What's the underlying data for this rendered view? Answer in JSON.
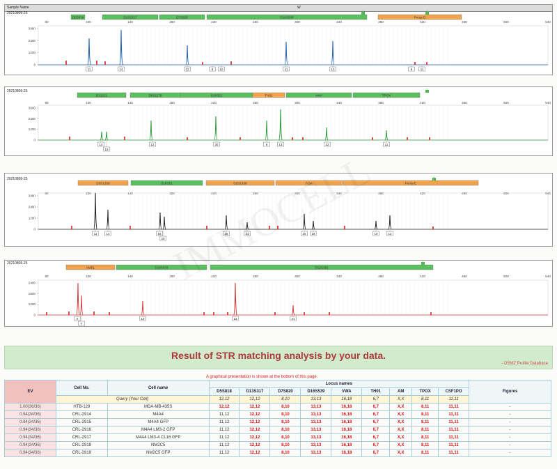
{
  "header": {
    "sample_label": "Sample Name",
    "well_label": "W"
  },
  "panels": [
    {
      "id": "blue",
      "date": "20210806-25",
      "dye_color": "#1f5fb0",
      "size_scale": [
        "80",
        "100",
        "140",
        "180",
        "220",
        "260",
        "300",
        "340",
        "380",
        "420",
        "460",
        "500",
        "540"
      ],
      "y_ticks": [
        "3400",
        "2400",
        "1200",
        "0"
      ],
      "bins": [
        {
          "label": "D5S818"
        },
        {
          "label": "D13S317"
        },
        {
          "label": "D7S820"
        },
        {
          "label": "D16S539"
        },
        {
          "label": "Penta D"
        }
      ],
      "markers": [
        "1",
        "2"
      ],
      "alleles": [
        "11",
        "14",
        "12",
        "8",
        "10",
        "11",
        "13",
        "9",
        "11"
      ]
    },
    {
      "id": "green",
      "date": "20210806-25",
      "dye_color": "#2e9a3a",
      "size_scale": [
        "80",
        "100",
        "140",
        "180",
        "220",
        "260",
        "300",
        "340",
        "380",
        "420",
        "460",
        "500",
        "540"
      ],
      "y_ticks": [
        "3600",
        "2400",
        "1200",
        "0"
      ],
      "bins": [
        {
          "label": "D21S11"
        },
        {
          "label": "D8S1179"
        },
        {
          "label": "D18S51"
        },
        {
          "label": "TH01"
        },
        {
          "label": "vWA"
        },
        {
          "label": "TPOX"
        }
      ],
      "markers": [
        "1"
      ],
      "alleles": [
        "14",
        "15",
        "12",
        "30",
        "9",
        "13",
        "12",
        "11"
      ]
    },
    {
      "id": "black",
      "date": "20210806-25",
      "dye_color": "#222222",
      "size_scale": [
        "80",
        "100",
        "140",
        "180",
        "220",
        "260",
        "300",
        "340",
        "380",
        "420",
        "460",
        "500",
        "540"
      ],
      "y_ticks": [
        "3400",
        "2400",
        "1200",
        "0"
      ],
      "bins": [
        {
          "label": "D3S1358"
        },
        {
          "label": "D18S51"
        },
        {
          "label": "D2S1338"
        },
        {
          "label": "FGA"
        },
        {
          "label": "Penta E"
        }
      ],
      "markers": [
        "1"
      ],
      "alleles": [
        "11",
        "14",
        "18",
        "20",
        "18",
        "21",
        "16",
        "18",
        "10",
        "12"
      ]
    },
    {
      "id": "red",
      "date": "20210806-25",
      "dye_color": "#d23a3a",
      "size_scale": [
        "80",
        "100",
        "140",
        "180",
        "220",
        "260",
        "300",
        "340",
        "380",
        "420",
        "460",
        "500",
        "540"
      ],
      "y_ticks": [
        "2400",
        "1800",
        "1200",
        "0"
      ],
      "bins": [
        {
          "label": "AMEL"
        },
        {
          "label": "D19S433"
        },
        {
          "label": "D12S391"
        }
      ],
      "markers": [
        "1"
      ],
      "alleles": [
        "X",
        "Y",
        "13",
        "13",
        "21"
      ]
    }
  ],
  "watermark": "IMMOCELL",
  "result": {
    "title": "Result of STR matching analysis by your data.",
    "source": "DSMZ Profile Database",
    "note": "A graphical presentation is shown at the bottom of this page."
  },
  "table": {
    "h_ev": "EV",
    "h_cellno": "Cell No.",
    "h_cellname": "Cell name",
    "h_locus": "Locus names",
    "h_figures": "Figures",
    "loci": [
      "D5S818",
      "D13S317",
      "D7S820",
      "D16S539",
      "VWA",
      "TH01",
      "AM",
      "TPOX",
      "CSF1PO"
    ],
    "query_label": "Query (Your Cell)",
    "query_values": [
      "12,12",
      "12,12",
      "8,10",
      "13,13",
      "16,18",
      "6,7",
      "X,X",
      "8,11",
      "11,11"
    ],
    "rows": [
      {
        "ev": "1.00(36/36)",
        "no": "HTB-129",
        "name": "MDA-MB-435S",
        "v": [
          "12,12",
          "12,12",
          "8,10",
          "13,13",
          "16,18",
          "6,7",
          "X,X",
          "8,11",
          "11,11"
        ],
        "fig": "-"
      },
      {
        "ev": "0.94(34/36)",
        "no": "CRL-2914",
        "name": "M4A4",
        "v": [
          "11,12",
          "12,12",
          "8,10",
          "13,13",
          "16,18",
          "6,7",
          "X,X",
          "8,11",
          "11,11"
        ],
        "fig": "-"
      },
      {
        "ev": "0.94(34/36)",
        "no": "CRL-2915",
        "name": "M4A4 GFP",
        "v": [
          "11,12",
          "12,12",
          "8,10",
          "13,13",
          "16,18",
          "6,7",
          "X,X",
          "8,11",
          "11,11"
        ],
        "fig": "-"
      },
      {
        "ev": "0.94(34/36)",
        "no": "CRL-2916",
        "name": "M4A4 LM3-2 GFP",
        "v": [
          "11,12",
          "12,12",
          "8,10",
          "13,13",
          "16,18",
          "6,7",
          "X,X",
          "8,11",
          "11,11"
        ],
        "fig": "-"
      },
      {
        "ev": "0.94(34/36)",
        "no": "CRL-2917",
        "name": "M4A4 LM3-4 CL16 GFP",
        "v": [
          "11,12",
          "12,12",
          "8,10",
          "13,13",
          "16,18",
          "6,7",
          "X,X",
          "8,11",
          "11,11"
        ],
        "fig": "-"
      },
      {
        "ev": "0.94(34/36)",
        "no": "CRL-2918",
        "name": "NM2C5",
        "v": [
          "11,12",
          "12,12",
          "8,10",
          "13,13",
          "16,18",
          "6,7",
          "X,X",
          "8,11",
          "11,11"
        ],
        "fig": "-"
      },
      {
        "ev": "0.94(34/36)",
        "no": "CRL-2919",
        "name": "NM2C5 GFP",
        "v": [
          "11,12",
          "12,12",
          "8,10",
          "13,13",
          "16,18",
          "6,7",
          "X,X",
          "8,11",
          "11,11"
        ],
        "fig": "-"
      }
    ]
  }
}
